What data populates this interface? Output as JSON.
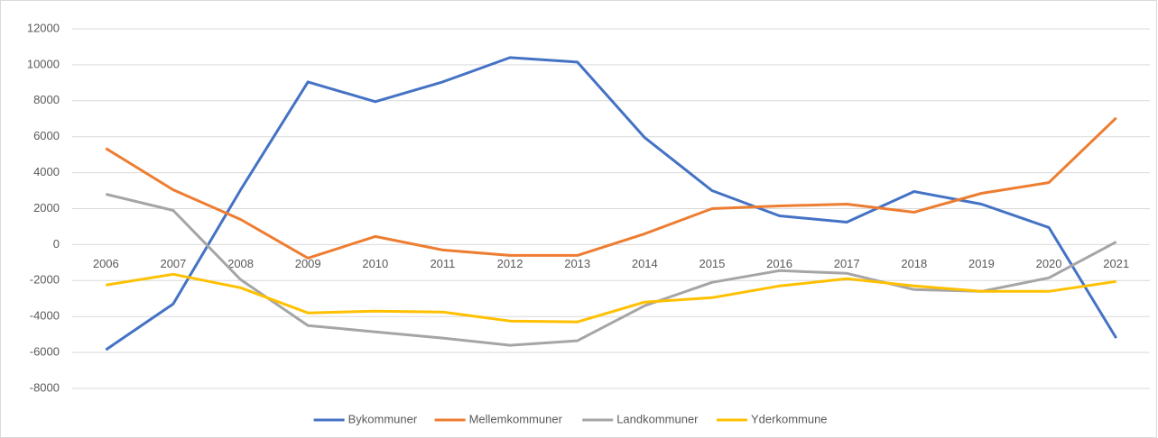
{
  "chart_data": {
    "type": "line",
    "categories": [
      "2006",
      "2007",
      "2008",
      "2009",
      "2010",
      "2011",
      "2012",
      "2013",
      "2014",
      "2015",
      "2016",
      "2017",
      "2018",
      "2019",
      "2020",
      "2021"
    ],
    "series": [
      {
        "name": "Bykommuner",
        "color": "#4472c4",
        "values": [
          -5850,
          -3300,
          3050,
          9050,
          7950,
          9050,
          10400,
          10150,
          5950,
          3000,
          1600,
          1250,
          2950,
          2250,
          950,
          -5200
        ]
      },
      {
        "name": "Mellemkommuner",
        "color": "#ed7d31",
        "values": [
          5350,
          3050,
          1400,
          -750,
          450,
          -300,
          -600,
          -600,
          600,
          2000,
          2150,
          2250,
          1800,
          2850,
          3450,
          7050
        ]
      },
      {
        "name": "Landkommuner",
        "color": "#a5a5a5",
        "values": [
          2800,
          1900,
          -1950,
          -4500,
          -4850,
          -5200,
          -5600,
          -5350,
          -3400,
          -2100,
          -1450,
          -1600,
          -2500,
          -2600,
          -1850,
          150
        ]
      },
      {
        "name": "Yderkommune",
        "color": "#ffc000",
        "values": [
          -2250,
          -1650,
          -2400,
          -3800,
          -3700,
          -3750,
          -4250,
          -4300,
          -3200,
          -2950,
          -2300,
          -1900,
          -2300,
          -2600,
          -2600,
          -2050
        ]
      }
    ],
    "ylim": [
      -8000,
      12000
    ],
    "yticks": [
      -8000,
      -6000,
      -4000,
      -2000,
      0,
      2000,
      4000,
      6000,
      8000,
      10000,
      12000
    ],
    "grid": true,
    "legend": "bottom"
  }
}
